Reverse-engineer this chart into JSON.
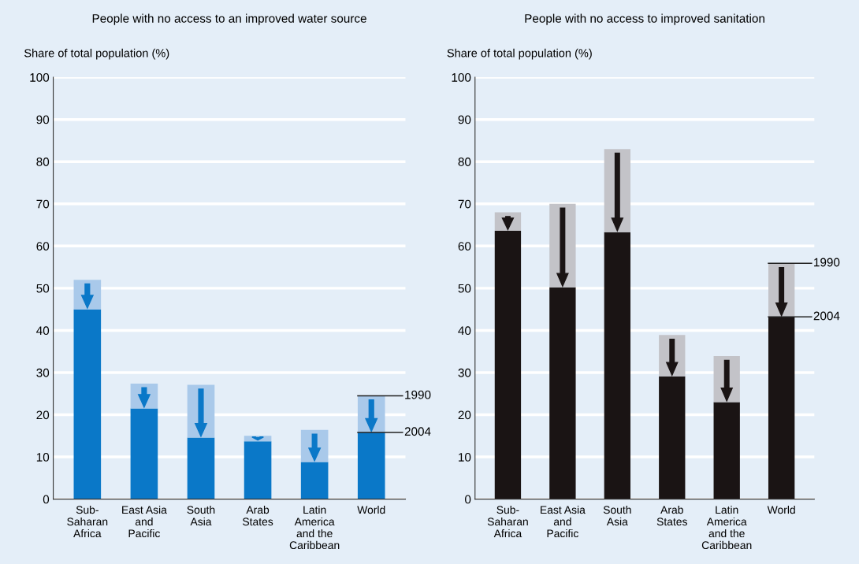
{
  "chart_data": [
    {
      "type": "bar",
      "title": "People with no access to an improved water source",
      "ylabel": "Share of total population (%)",
      "stacked": true,
      "grid": "y",
      "categories": [
        "Sub-\nSaharan\nAfrica",
        "East Asia\nand\nPacific",
        "South\nAsia",
        "Arab\nStates",
        "Latin\nAmerica\nand the\nCaribbean",
        "World"
      ],
      "series": [
        {
          "color": "#0a78c8",
          "values": [
            45,
            21.5,
            14.6,
            13.7,
            8.8,
            15.8
          ]
        },
        {
          "color": "#a9c9ea",
          "values": [
            7,
            5.9,
            12.5,
            1.3,
            7.6,
            8.7
          ]
        }
      ],
      "annotations": [
        {
          "text": "1990",
          "x": "World",
          "y": 24.5
        },
        {
          "text": "2004",
          "x": "World",
          "y": 15.8
        }
      ],
      "ylim": [
        0,
        100
      ],
      "yticks": [
        0,
        10,
        20,
        30,
        40,
        50,
        60,
        70,
        80,
        90,
        100
      ]
    },
    {
      "type": "bar",
      "title": "People with no access to improved sanitation",
      "ylabel": "Share of total population (%)",
      "stacked": true,
      "grid": "y",
      "categories": [
        "Sub-\nSaharan\nAfrica",
        "East Asia\nand\nPacific",
        "South\nAsia",
        "Arab\nStates",
        "Latin\nAmerica\nand the\nCaribbean",
        "World"
      ],
      "series": [
        {
          "color": "#1a1414",
          "values": [
            63.6,
            50.2,
            63.3,
            29.1,
            23,
            43.2
          ]
        },
        {
          "color": "#c3c3c8",
          "values": [
            4.4,
            19.8,
            19.7,
            9.8,
            10.9,
            12.7
          ]
        }
      ],
      "annotations": [
        {
          "text": "1990",
          "x": "World",
          "y": 55.9
        },
        {
          "text": "2004",
          "x": "World",
          "y": 43.2
        }
      ],
      "ylim": [
        0,
        100
      ],
      "yticks": [
        0,
        10,
        20,
        30,
        40,
        50,
        60,
        70,
        80,
        90,
        100
      ]
    }
  ]
}
